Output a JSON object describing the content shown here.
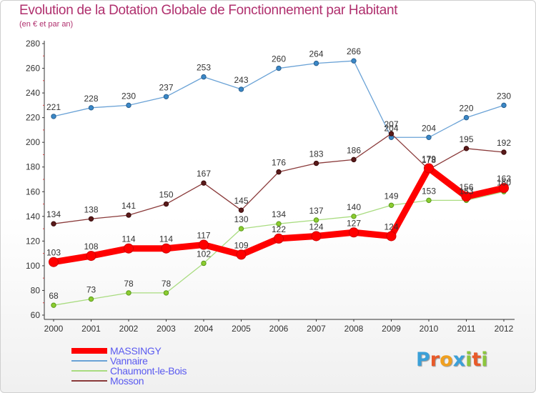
{
  "header": {
    "title": "Evolution de la Dotation Globale de Fonctionnement par Habitant",
    "subtitle": "(en € et par an)"
  },
  "colors": {
    "title": "#b0306e",
    "axis": "#333333",
    "grid": "#e0e0e0",
    "legend_text": "#5a5af0",
    "background": "#ffffff"
  },
  "logo": {
    "text": "Proxiti",
    "letters": [
      {
        "char": "P",
        "color": "#3ba0d8"
      },
      {
        "char": "r",
        "color": "#e85a2a"
      },
      {
        "char": "o",
        "color": "#f0a020"
      },
      {
        "char": "x",
        "color": "#3ba0d8"
      },
      {
        "char": "i",
        "color": "#8cc63e"
      },
      {
        "char": "t",
        "color": "#e85a2a"
      },
      {
        "char": "i",
        "color": "#8cc63e"
      }
    ]
  },
  "chart_data": {
    "type": "line",
    "title": "Evolution de la Dotation Globale de Fonctionnement par Habitant",
    "subtitle": "(en € et par an)",
    "xlabel": "",
    "ylabel": "",
    "x": [
      "2000",
      "2001",
      "2002",
      "2003",
      "2004",
      "2005",
      "2006",
      "2007",
      "2008",
      "2009",
      "2010",
      "2011",
      "2012"
    ],
    "ylim": [
      60,
      280
    ],
    "yticks": [
      60,
      80,
      100,
      120,
      140,
      160,
      180,
      200,
      220,
      240,
      260,
      280
    ],
    "grid": false,
    "legend_position": "bottom-left",
    "series": [
      {
        "name": "MASSINGY",
        "color": "#ff0000",
        "line_width": "thick",
        "marker": "red",
        "values": [
          103,
          108,
          114,
          114,
          117,
          109,
          122,
          124,
          127,
          124,
          179,
          156,
          163
        ],
        "labels": [
          "103",
          "108",
          "114",
          "114",
          "117",
          "109",
          "122",
          "124",
          "127",
          "124",
          "179",
          "156",
          "163"
        ]
      },
      {
        "name": "Vannaire",
        "color": "#6aa2d6",
        "line_width": "thin",
        "marker": "blue",
        "values": [
          221,
          228,
          230,
          237,
          253,
          243,
          260,
          264,
          266,
          204,
          204,
          220,
          230
        ],
        "labels": [
          "221",
          "228",
          "230",
          "237",
          "253",
          "243",
          "260",
          "264",
          "266",
          "204",
          "204",
          "220",
          "230"
        ]
      },
      {
        "name": "Chaumont-le-Bois",
        "color": "#a9dc80",
        "line_width": "thin",
        "marker": "green",
        "values": [
          68,
          73,
          78,
          78,
          102,
          130,
          134,
          137,
          140,
          149,
          153,
          153,
          160
        ],
        "labels": [
          "68",
          "73",
          "78",
          "78",
          "102",
          "130",
          "134",
          "137",
          "140",
          "149",
          "153",
          "153",
          "160"
        ]
      },
      {
        "name": "Mosson",
        "color": "#8a3a3a",
        "line_width": "thin",
        "marker": "darkred",
        "values": [
          134,
          138,
          141,
          150,
          167,
          145,
          176,
          183,
          186,
          207,
          178,
          195,
          192
        ],
        "labels": [
          "134",
          "138",
          "141",
          "150",
          "167",
          "145",
          "176",
          "183",
          "186",
          "207",
          "178",
          "195",
          "192"
        ]
      }
    ]
  }
}
